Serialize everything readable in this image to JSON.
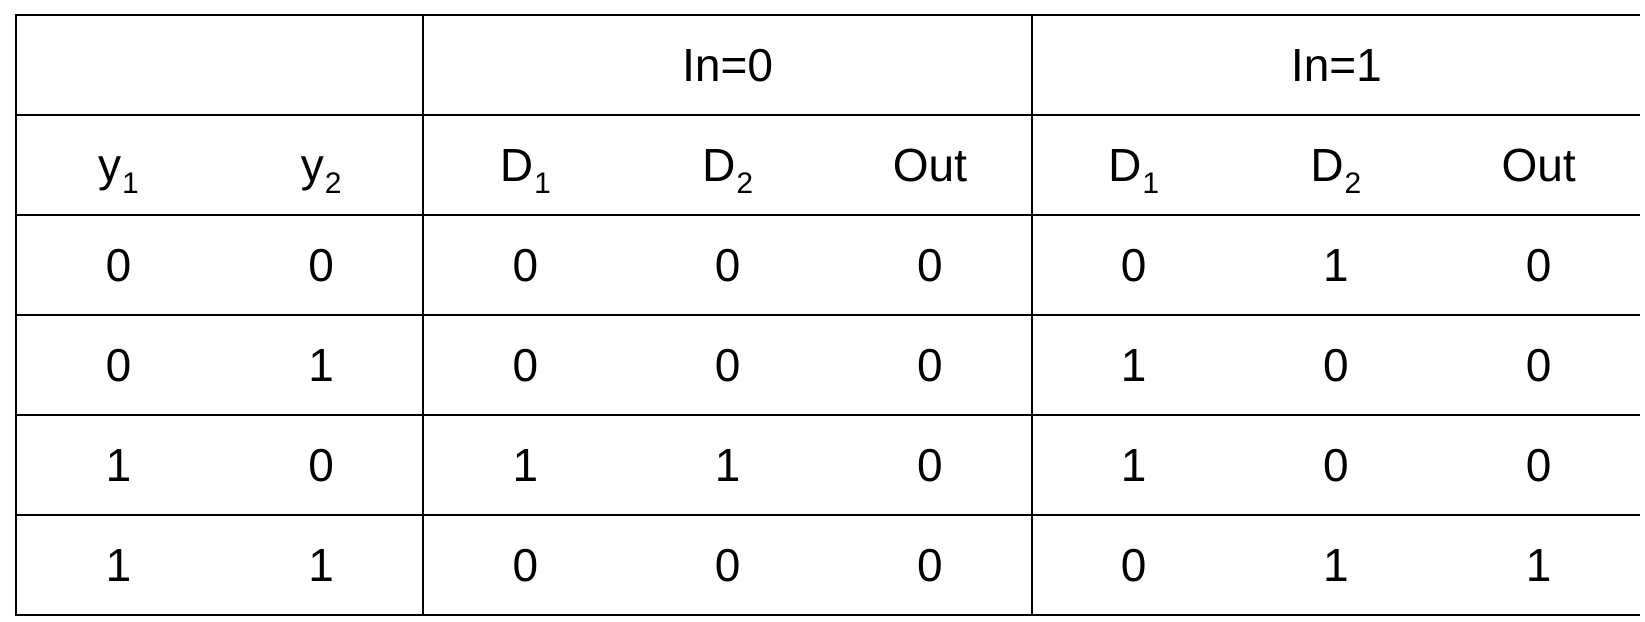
{
  "groups": {
    "in0": "In=0",
    "in1": "In=1"
  },
  "columns": {
    "y1": {
      "base": "y",
      "sub": "1"
    },
    "y2": {
      "base": "y",
      "sub": "2"
    },
    "in0_d1": {
      "base": "D",
      "sub": "1"
    },
    "in0_d2": {
      "base": "D",
      "sub": "2"
    },
    "in0_out": "Out",
    "in1_d1": {
      "base": "D",
      "sub": "1"
    },
    "in1_d2": {
      "base": "D",
      "sub": "2"
    },
    "in1_out": "Out"
  },
  "rows": [
    [
      "0",
      "0",
      "0",
      "0",
      "0",
      "0",
      "1",
      "0"
    ],
    [
      "0",
      "1",
      "0",
      "0",
      "0",
      "1",
      "0",
      "0"
    ],
    [
      "1",
      "0",
      "1",
      "1",
      "0",
      "1",
      "0",
      "0"
    ],
    [
      "1",
      "1",
      "0",
      "0",
      "0",
      "0",
      "1",
      "1"
    ]
  ]
}
